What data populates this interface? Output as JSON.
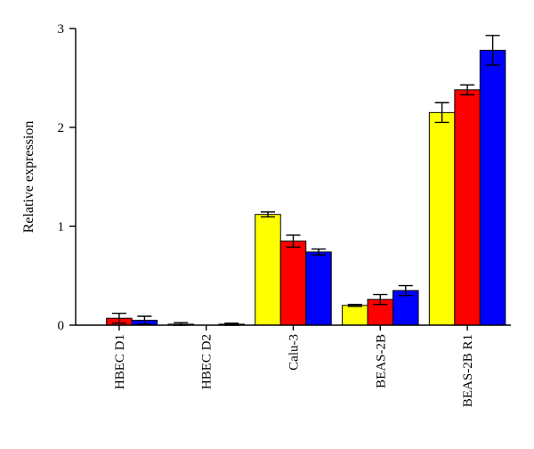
{
  "chart_data": {
    "type": "bar",
    "ylabel": "Relative expression",
    "xlabel": "",
    "ylim": [
      0,
      3
    ],
    "yticks": [
      0,
      1,
      2,
      3
    ],
    "categories": [
      "HBEC D1",
      "HBEC D2",
      "Calu-3",
      "BEAS-2B",
      "BEAS-2B R1"
    ],
    "series": [
      {
        "color": "#ffff00",
        "values": [
          0,
          0.01,
          1.12,
          0.2,
          2.15
        ],
        "errors": [
          0,
          0.015,
          0.025,
          0.01,
          0.1
        ]
      },
      {
        "color": "#ff0000",
        "values": [
          0.07,
          0,
          0.85,
          0.26,
          2.38
        ],
        "errors": [
          0.05,
          0,
          0.06,
          0.05,
          0.05
        ]
      },
      {
        "color": "#0000ff",
        "values": [
          0.05,
          0.01,
          0.74,
          0.35,
          2.78
        ],
        "errors": [
          0.04,
          0.01,
          0.03,
          0.05,
          0.15
        ]
      }
    ],
    "grid": false,
    "legend": "none"
  }
}
